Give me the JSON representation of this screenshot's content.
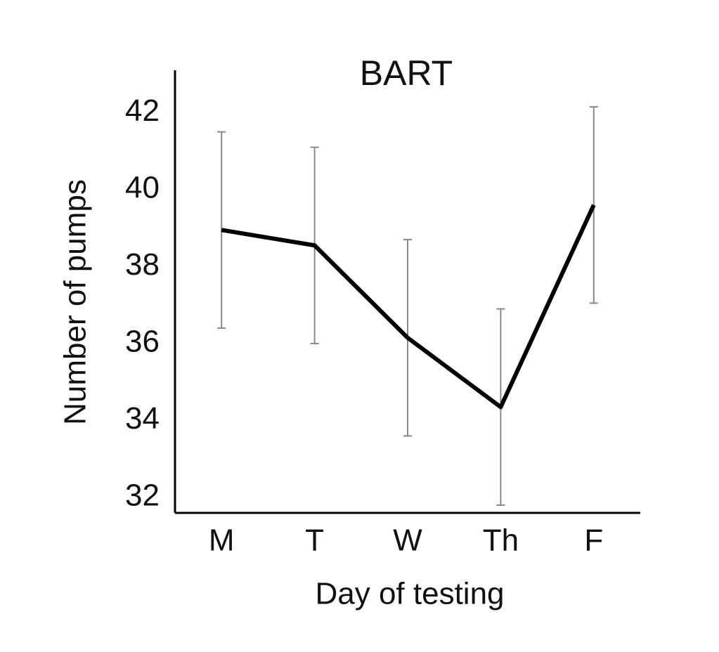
{
  "chart_data": {
    "type": "line",
    "title": "BART",
    "x_label": "Day of testing",
    "y_label": "Number of pumps",
    "categories": [
      "M",
      "T",
      "W",
      "Th",
      "F"
    ],
    "values": [
      38.95,
      38.55,
      36.15,
      34.35,
      39.6
    ],
    "errors": [
      2.55,
      2.55,
      2.55,
      2.55,
      2.55
    ],
    "color": "#000000",
    "error_color": "#888888",
    "ylim": [
      31.6,
      43.1
    ],
    "yticks": [
      32,
      34,
      36,
      38,
      40,
      42
    ],
    "grid": false
  }
}
